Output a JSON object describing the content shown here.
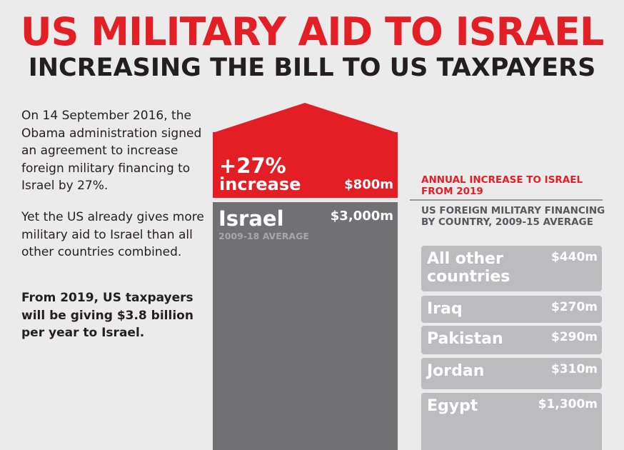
{
  "header": {
    "title": "US MILITARY AID TO ISRAEL",
    "subtitle": "INCREASING THE BILL TO US TAXPAYERS"
  },
  "text": {
    "para1": "On 14 September 2016, the Obama administration signed an agreement to increase foreign military financing to Israel by 27%.",
    "para2": "Yet the US already gives more military aid to Israel than all other countries combined.",
    "para3": "From 2019, US taxpayers will be giving $3.8 billion per year to Israel."
  },
  "colors": {
    "accent": "#e31e24",
    "israel_bar": "#717073",
    "country_bar": "#bcbcbe",
    "background": "#ebebeb"
  },
  "chart_data": {
    "type": "bar",
    "increase": {
      "pct_label": "+27%",
      "word_label": "increase",
      "value": 800,
      "value_label": "$800m",
      "legend": "ANNUAL INCREASE TO ISRAEL FROM 2019"
    },
    "israel": {
      "name": "Israel",
      "sublabel": "2009-18 AVERAGE",
      "value": 3000,
      "value_label": "$3,000m"
    },
    "countries_title": "US FOREIGN MILITARY FINANCING BY COUNTRY, 2009-15 AVERAGE",
    "countries": [
      {
        "name": "All other countries",
        "value": 440,
        "value_label": "$440m"
      },
      {
        "name": "Iraq",
        "value": 270,
        "value_label": "$270m"
      },
      {
        "name": "Pakistan",
        "value": 290,
        "value_label": "$290m"
      },
      {
        "name": "Jordan",
        "value": 310,
        "value_label": "$310m"
      },
      {
        "name": "Egypt",
        "value": 1300,
        "value_label": "$1,300m"
      }
    ]
  }
}
